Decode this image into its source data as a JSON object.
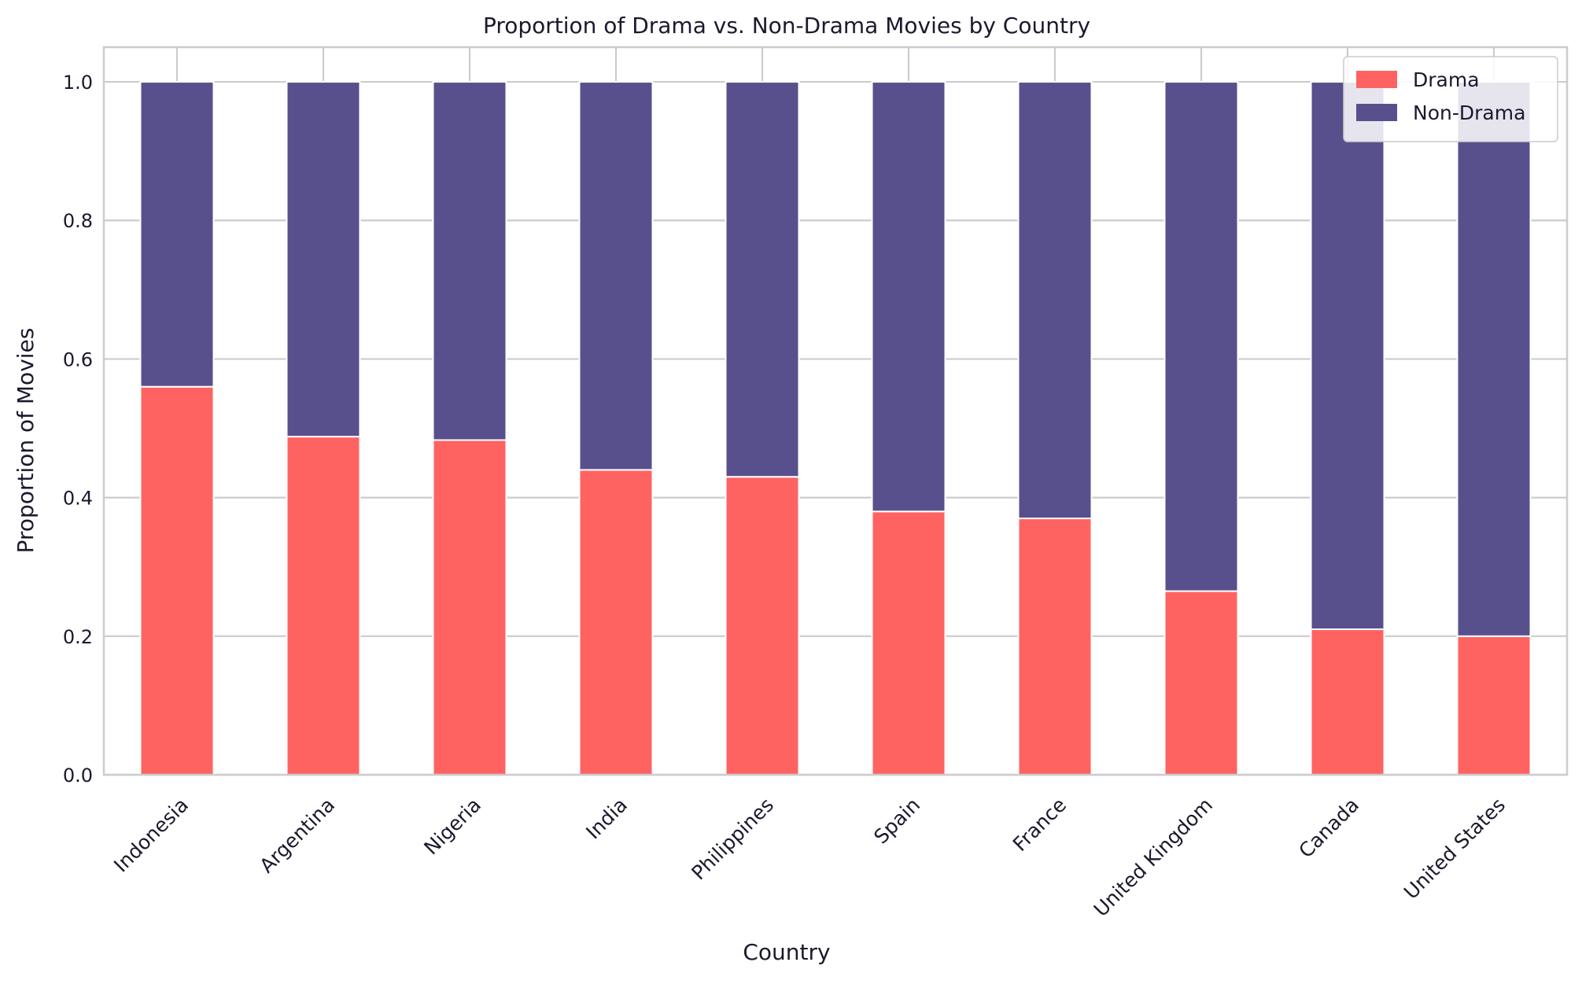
{
  "chart_data": {
    "type": "bar",
    "stacked": true,
    "title": "Proportion of Drama vs. Non-Drama Movies by Country",
    "xlabel": "Country",
    "ylabel": "Proportion of Movies",
    "ylim": [
      0,
      1.05
    ],
    "yticks": [
      "0.0",
      "0.2",
      "0.4",
      "0.6",
      "0.8",
      "1.0"
    ],
    "grid": true,
    "legend_position": "top-right",
    "categories": [
      "Indonesia",
      "Argentina",
      "Nigeria",
      "India",
      "Philippines",
      "Spain",
      "France",
      "United Kingdom",
      "Canada",
      "United States"
    ],
    "series": [
      {
        "name": "Drama",
        "color": "#ff6361",
        "values": [
          0.56,
          0.488,
          0.483,
          0.44,
          0.43,
          0.38,
          0.37,
          0.265,
          0.21,
          0.2
        ]
      },
      {
        "name": "Non-Drama",
        "color": "#58508d",
        "values": [
          0.44,
          0.512,
          0.517,
          0.56,
          0.57,
          0.62,
          0.63,
          0.735,
          0.79,
          0.8
        ]
      }
    ]
  }
}
